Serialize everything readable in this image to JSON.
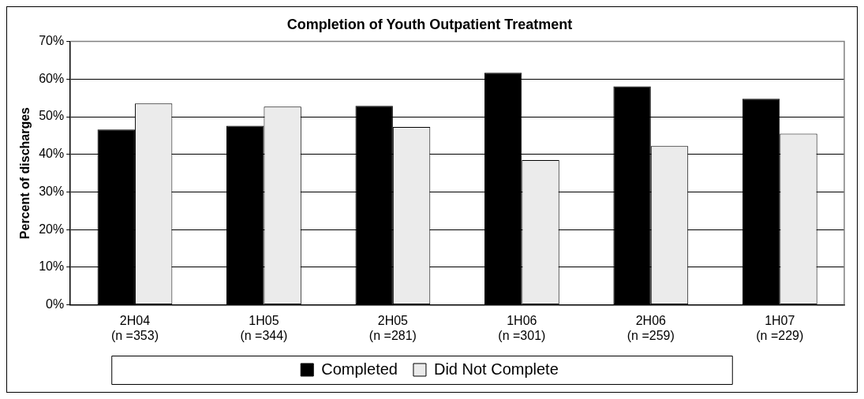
{
  "chart_data": {
    "type": "bar",
    "title": "Completion of Youth Outpatient Treatment",
    "ylabel": "Percent of discharges",
    "categories": [
      "2H04\n(n =353)",
      "1H05\n(n =344)",
      "2H05\n(n =281)",
      "1H06\n(n =301)",
      "2H06\n(n =259)",
      "1H07\n(n =229)"
    ],
    "series": [
      {
        "name": "Completed",
        "color": "#000000",
        "values": [
          46.6,
          47.6,
          52.9,
          61.7,
          58.1,
          54.8
        ]
      },
      {
        "name": "Did Not Complete",
        "color": "#ebebeb",
        "values": [
          53.5,
          52.7,
          47.3,
          38.5,
          42.2,
          45.5
        ]
      }
    ],
    "ylim": [
      0,
      70
    ],
    "yticks": [
      {
        "value": 0,
        "label": "0%"
      },
      {
        "value": 10,
        "label": "10%"
      },
      {
        "value": 20,
        "label": "20%"
      },
      {
        "value": 30,
        "label": "30%"
      },
      {
        "value": 40,
        "label": "40%"
      },
      {
        "value": 50,
        "label": "50%"
      },
      {
        "value": 60,
        "label": "60%"
      },
      {
        "value": 70,
        "label": "70%"
      }
    ],
    "grid": "y",
    "legend": "bottom"
  }
}
